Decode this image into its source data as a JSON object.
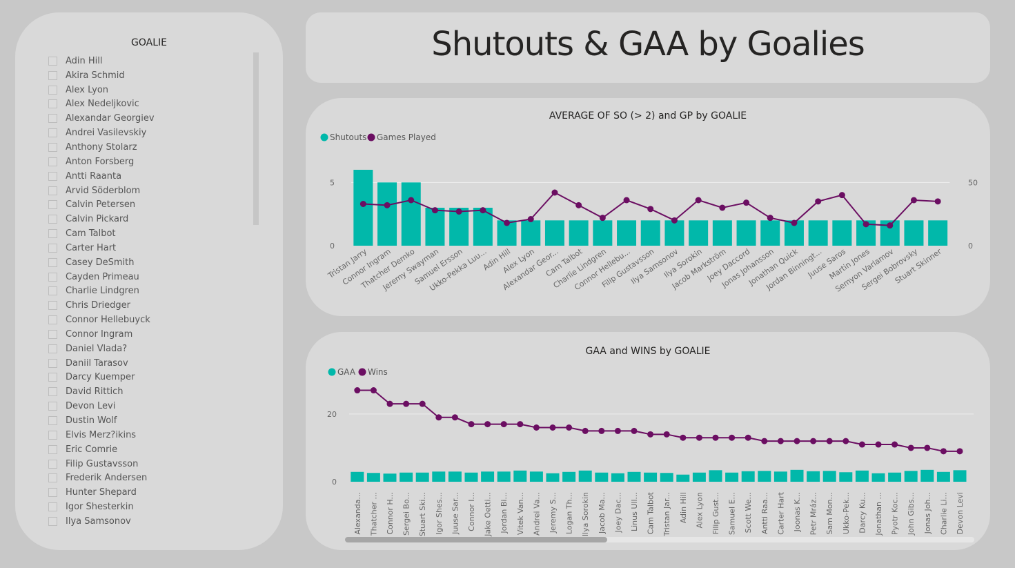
{
  "slicer": {
    "title": "GOALIE",
    "items": [
      "Adin Hill",
      "Akira Schmid",
      "Alex Lyon",
      "Alex Nedeljkovic",
      "Alexandar Georgiev",
      "Andrei Vasilevskiy",
      "Anthony Stolarz",
      "Anton Forsberg",
      "Antti Raanta",
      "Arvid Söderblom",
      "Calvin Petersen",
      "Calvin Pickard",
      "Cam Talbot",
      "Carter Hart",
      "Casey DeSmith",
      "Cayden Primeau",
      "Charlie Lindgren",
      "Chris Driedger",
      "Connor Hellebuyck",
      "Connor Ingram",
      "Daniel Vlada?",
      "Daniil Tarasov",
      "Darcy Kuemper",
      "David Rittich",
      "Devon Levi",
      "Dustin Wolf",
      "Elvis Merz?ikins",
      "Eric Comrie",
      "Filip Gustavsson",
      "Frederik Andersen",
      "Hunter Shepard",
      "Igor Shesterkin",
      "Ilya Samsonov"
    ]
  },
  "page_title": "Shutouts & GAA by Goalies",
  "colors": {
    "teal": "#01b8aa",
    "purple": "#6b0e62",
    "panel": "#d9d9d9",
    "bg": "#c8c8c8"
  },
  "chart_data": [
    {
      "type": "bar+line",
      "title": "AVERAGE OF SO (> 2) and GP by GOALIE",
      "legend": [
        "Shutouts",
        "Games Played"
      ],
      "categories": [
        "Tristan Jarry",
        "Connor Ingram",
        "Thatcher Demko",
        "Jeremy Swayman",
        "Samuel Ersson",
        "Ukko-Pekka Luu...",
        "Adin Hill",
        "Alex Lyon",
        "Alexandar Geor...",
        "Cam Talbot",
        "Charlie Lindgren",
        "Connor Hellebu...",
        "Filip Gustavsson",
        "Ilya Samsonov",
        "Ilya Sorokin",
        "Jacob Markström",
        "Joey Daccord",
        "Jonas Johansson",
        "Jonathan Quick",
        "Jordan Binningt...",
        "Juuse Saros",
        "Martin Jones",
        "Semyon Varlamov",
        "Sergei Bobrovsky",
        "Stuart Skinner"
      ],
      "series": [
        {
          "name": "Shutouts",
          "axis": "left",
          "values": [
            6,
            5,
            5,
            3,
            3,
            3,
            2,
            2,
            2,
            2,
            2,
            2,
            2,
            2,
            2,
            2,
            2,
            2,
            2,
            2,
            2,
            2,
            2,
            2,
            2
          ]
        },
        {
          "name": "Games Played",
          "axis": "right",
          "values": [
            33,
            32,
            36,
            28,
            27,
            28,
            18,
            21,
            42,
            32,
            22,
            36,
            29,
            20,
            36,
            30,
            34,
            22,
            18,
            35,
            40,
            17,
            16,
            36,
            35
          ]
        }
      ],
      "left_ticks": [
        "0",
        "5"
      ],
      "right_ticks": [
        "0",
        "50"
      ],
      "ylim_left": [
        0,
        6
      ],
      "ylim_right": [
        0,
        60
      ]
    },
    {
      "type": "bar+line",
      "title": "GAA and WINS by GOALIE",
      "legend": [
        "GAA",
        "Wins"
      ],
      "categories": [
        "Alexanda...",
        "Thatcher ...",
        "Connor H...",
        "Sergei Bo...",
        "Stuart Ski...",
        "Igor Shes...",
        "Juuse Sar...",
        "Connor I...",
        "Jake Oetti...",
        "Jordan Bi...",
        "Vitek Van...",
        "Andrei Va...",
        "Jeremy S...",
        "Logan Th...",
        "Ilya Sorokin",
        "Jacob Ma...",
        "Joey Dac...",
        "Linus Ull...",
        "Cam Talbot",
        "Tristan Jar...",
        "Adin Hill",
        "Alex Lyon",
        "Filip Gust...",
        "Samuel E...",
        "Scott We...",
        "Antti Raa...",
        "Carter Hart",
        "Joonas K...",
        "Petr Mráz...",
        "Sam Mon...",
        "Ukko-Pek...",
        "Darcy Ku...",
        "Jonathan ...",
        "Pyotr Koc...",
        "John Gibs...",
        "Jonas Joh...",
        "Charlie Li...",
        "Devon Levi"
      ],
      "series": [
        {
          "name": "GAA",
          "axis": "left",
          "values": [
            2.9,
            2.6,
            2.4,
            2.7,
            2.7,
            3.0,
            3.0,
            2.7,
            3.0,
            3.0,
            3.3,
            3.0,
            2.5,
            2.9,
            3.3,
            2.7,
            2.5,
            2.9,
            2.7,
            2.6,
            2.1,
            2.7,
            3.4,
            2.7,
            3.1,
            3.2,
            3.0,
            3.5,
            3.1,
            3.2,
            2.8,
            3.3,
            2.5,
            2.7,
            3.2,
            3.5,
            2.9,
            3.4
          ]
        },
        {
          "name": "Wins",
          "axis": "left",
          "values": [
            27,
            27,
            23,
            23,
            23,
            19,
            19,
            17,
            17,
            17,
            17,
            16,
            16,
            16,
            15,
            15,
            15,
            15,
            14,
            14,
            13,
            13,
            13,
            13,
            13,
            12,
            12,
            12,
            12,
            12,
            12,
            11,
            11,
            11,
            10,
            10,
            9,
            9
          ]
        }
      ],
      "left_ticks": [
        "0",
        "20"
      ],
      "ylim": [
        0,
        32
      ]
    }
  ]
}
